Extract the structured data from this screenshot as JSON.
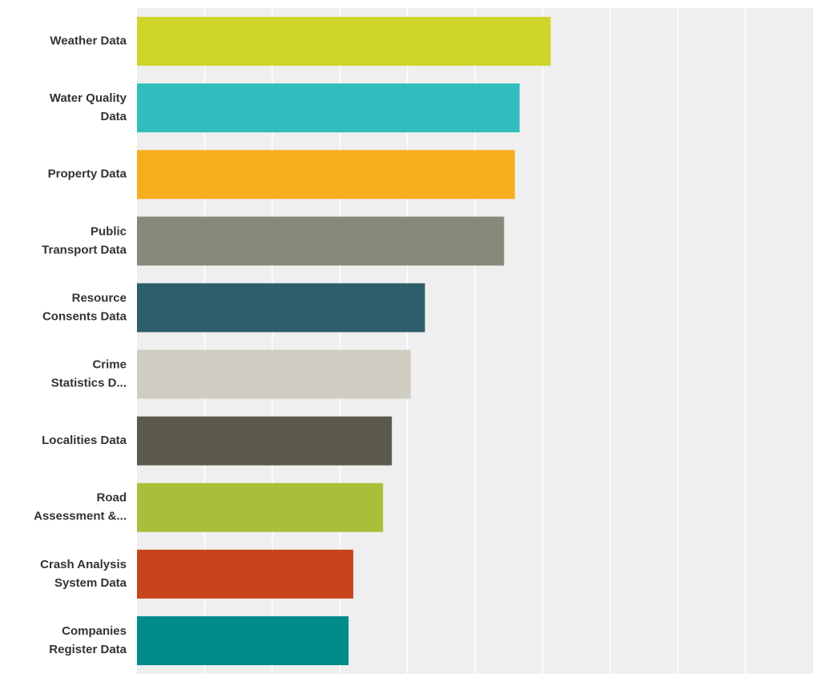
{
  "chart_data": {
    "type": "bar",
    "orientation": "horizontal",
    "categories": [
      [
        "Weather Data"
      ],
      [
        "Water Quality",
        "Data"
      ],
      [
        "Property Data"
      ],
      [
        "Public",
        "Transport Data"
      ],
      [
        "Resource",
        "Consents Data"
      ],
      [
        "Crime",
        "Statistics D..."
      ],
      [
        "Localities Data"
      ],
      [
        "Road",
        "Assessment &..."
      ],
      [
        "Crash Analysis",
        "System Data"
      ],
      [
        "Companies",
        "Register Data"
      ]
    ],
    "values": [
      61.2,
      56.6,
      55.9,
      54.3,
      42.6,
      40.5,
      37.7,
      36.4,
      32.0,
      31.3
    ],
    "colors": [
      "#cfd52a",
      "#31bdbe",
      "#f6ae1f",
      "#878a79",
      "#2c5f6b",
      "#cfcdc2",
      "#5b594b",
      "#a9bf3a",
      "#c8441c",
      "#008a8a"
    ],
    "xlim": [
      0,
      100
    ],
    "gridlines": 10,
    "grid": true,
    "plot_background": "#efefef",
    "gridline_color": "#ffffff",
    "label_color": "#333333",
    "title": "",
    "xlabel": "",
    "ylabel": ""
  }
}
